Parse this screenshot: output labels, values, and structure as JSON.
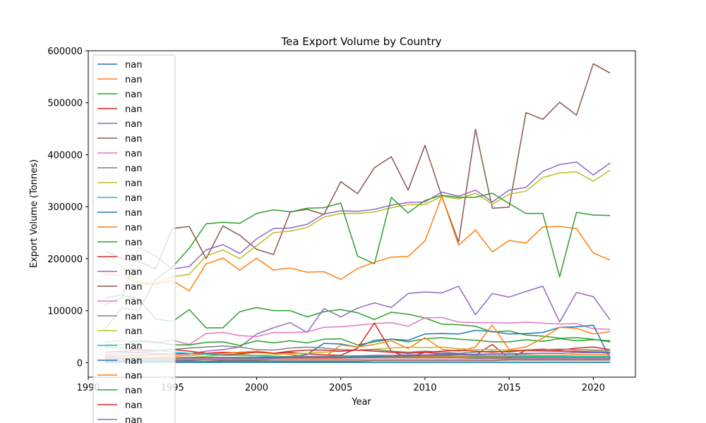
{
  "chart_data": {
    "type": "line",
    "title": "Tea Export Volume by Country",
    "xlabel": "Year",
    "ylabel": "Export Volume (Tonnes)",
    "xlim": [
      1990,
      2022.5
    ],
    "ylim": [
      -28000,
      600000
    ],
    "x_ticks": [
      "1990",
      "1995",
      "2000",
      "2005",
      "2010",
      "2015",
      "2020"
    ],
    "x_tick_values": [
      1990,
      1995,
      2000,
      2005,
      2010,
      2015,
      2020
    ],
    "y_ticks": [
      "0",
      "100000",
      "200000",
      "300000",
      "400000",
      "500000",
      "600000"
    ],
    "y_tick_values": [
      0,
      100000,
      200000,
      300000,
      400000,
      500000,
      600000
    ],
    "grid": false,
    "legend_position": "upper-left",
    "legend_entries": [
      "nan",
      "nan",
      "nan",
      "nan",
      "nan",
      "nan",
      "nan",
      "nan",
      "nan",
      "nan",
      "nan",
      "nan",
      "nan",
      "nan",
      "nan",
      "nan",
      "nan",
      "nan",
      "nan",
      "nan",
      "nan",
      "nan",
      "nan",
      "nan",
      "nan"
    ],
    "palette": [
      "#1f77b4",
      "#ff7f0e",
      "#2ca02c",
      "#d62728",
      "#9467bd",
      "#8c564b",
      "#e377c2",
      "#7f7f7f",
      "#bcbd22",
      "#17becf"
    ],
    "x": [
      1991,
      1992,
      1993,
      1994,
      1995,
      1996,
      1997,
      1998,
      1999,
      2000,
      2001,
      2002,
      2003,
      2004,
      2005,
      2006,
      2007,
      2008,
      2009,
      2010,
      2011,
      2012,
      2013,
      2014,
      2015,
      2016,
      2017,
      2018,
      2019,
      2020,
      2021
    ],
    "series": [
      {
        "color_index": 5,
        "values": [
          215000,
          200000,
          195000,
          180000,
          258000,
          262000,
          200000,
          263000,
          245000,
          218000,
          208000,
          290000,
          295000,
          285000,
          348000,
          325000,
          375000,
          396000,
          332000,
          418000,
          320000,
          232000,
          449000,
          297000,
          299000,
          481000,
          468000,
          501000,
          476000,
          575000,
          557000
        ]
      },
      {
        "color_index": 8,
        "values": [
          200000,
          185000,
          155000,
          152000,
          165000,
          170000,
          205000,
          217000,
          200000,
          225000,
          250000,
          253000,
          260000,
          280000,
          287000,
          287000,
          290000,
          298000,
          304000,
          304000,
          320000,
          315000,
          326000,
          305000,
          324000,
          330000,
          356000,
          365000,
          367000,
          349000,
          370000
        ]
      },
      {
        "color_index": 4,
        "values": [
          112000,
          125000,
          222000,
          205000,
          180000,
          185000,
          217000,
          227000,
          210000,
          238000,
          258000,
          259000,
          266000,
          286000,
          292000,
          291000,
          295000,
          303000,
          308000,
          309000,
          328000,
          320000,
          332000,
          309000,
          332000,
          337000,
          368000,
          381000,
          386000,
          361000,
          384000
        ]
      },
      {
        "color_index": 2,
        "values": [
          125000,
          130000,
          122000,
          84000,
          79000,
          102000,
          67000,
          67000,
          98000,
          106000,
          100000,
          100000,
          88000,
          98000,
          102000,
          96000,
          83000,
          97000,
          93000,
          86000,
          74000,
          73000,
          70000,
          59000,
          61000,
          53000,
          51000,
          47000,
          48000,
          45000,
          40000
        ]
      },
      {
        "color_index": 2,
        "values": [
          65000,
          105000,
          100000,
          160000,
          184000,
          220000,
          267000,
          270000,
          268000,
          287000,
          294000,
          290000,
          297000,
          298000,
          307000,
          205000,
          190000,
          318000,
          288000,
          312000,
          322000,
          318000,
          318000,
          326000,
          306000,
          287000,
          287000,
          165000,
          289000,
          284000,
          283000
        ]
      },
      {
        "color_index": 1,
        "values": [
          170000,
          168000,
          152000,
          150000,
          158000,
          138000,
          190000,
          201000,
          178000,
          201000,
          178000,
          182000,
          174000,
          175000,
          160000,
          181000,
          193000,
          203000,
          204000,
          234000,
          320000,
          226000,
          255000,
          213000,
          235000,
          230000,
          261000,
          262000,
          258000,
          211000,
          197000
        ]
      },
      {
        "color_index": 4,
        "values": [
          20000,
          21000,
          19000,
          18000,
          16000,
          17000,
          22000,
          25000,
          30000,
          55000,
          67000,
          77000,
          58000,
          104000,
          88000,
          105000,
          115000,
          106000,
          133000,
          136000,
          134000,
          147000,
          92000,
          133000,
          126000,
          137000,
          147000,
          78000,
          135000,
          127000,
          82000
        ]
      },
      {
        "color_index": 6,
        "values": [
          40000,
          42000,
          40000,
          38000,
          43000,
          35000,
          56000,
          58000,
          52000,
          50000,
          58000,
          58000,
          59000,
          68000,
          69000,
          72000,
          75000,
          77000,
          70000,
          86000,
          87000,
          78000,
          77000,
          77000,
          76000,
          78000,
          76000,
          74000,
          75000,
          65000,
          64000
        ]
      },
      {
        "color_index": 2,
        "values": [
          35000,
          34000,
          42000,
          40000,
          34000,
          34000,
          39000,
          40000,
          33000,
          42000,
          38000,
          42000,
          38000,
          45000,
          46000,
          34000,
          40000,
          45000,
          40000,
          46000,
          48000,
          45000,
          43000,
          40000,
          40000,
          44000,
          41000,
          46000,
          42000,
          44000,
          42000
        ]
      },
      {
        "color_index": 0,
        "values": [
          3000,
          3000,
          3000,
          3000,
          4000,
          4000,
          5000,
          5000,
          6000,
          8000,
          9000,
          12000,
          16000,
          37000,
          36000,
          30000,
          43000,
          45000,
          43000,
          55000,
          56000,
          55000,
          62000,
          60000,
          55000,
          56000,
          58000,
          68000,
          69000,
          72000,
          8000
        ]
      },
      {
        "color_index": 3,
        "values": [
          20000,
          22000,
          24000,
          23000,
          25000,
          22000,
          18000,
          20000,
          19000,
          22000,
          18000,
          20000,
          17000,
          15000,
          14000,
          28000,
          76000,
          22000,
          10000,
          20000,
          17000,
          18000,
          14000,
          35000,
          8000,
          24000,
          26000,
          24000,
          28000,
          30000,
          25000
        ]
      },
      {
        "color_index": 1,
        "values": [
          10000,
          9000,
          8000,
          10000,
          12000,
          14000,
          16000,
          18000,
          20000,
          22000,
          18000,
          16000,
          12000,
          10000,
          34000,
          30000,
          35000,
          42000,
          27000,
          48000,
          26000,
          22000,
          30000,
          72000,
          25000,
          30000,
          47000,
          68000,
          66000,
          55000,
          60000
        ]
      },
      {
        "color_index": 8,
        "values": [
          8000,
          9000,
          10000,
          9000,
          8000,
          10000,
          12000,
          15000,
          16000,
          14000,
          15000,
          18000,
          18000,
          20000,
          22000,
          24000,
          26000,
          28000,
          30000,
          29000,
          30000,
          27000,
          25000,
          25000,
          24000,
          23000,
          22000,
          22000,
          21000,
          22000,
          21000
        ]
      },
      {
        "color_index": 7,
        "values": [
          15000,
          18000,
          20000,
          22000,
          25000,
          28000,
          30000,
          32000,
          30000,
          25000,
          24000,
          28000,
          30000,
          28000,
          25000,
          24000,
          25000,
          22000,
          20000,
          22000,
          20000,
          18000,
          20000,
          22000,
          20000,
          24000,
          25000,
          26000,
          25000,
          24000,
          24000
        ]
      },
      {
        "color_index": 3,
        "values": [
          12000,
          13000,
          14000,
          15000,
          16000,
          18000,
          16000,
          15000,
          17000,
          20000,
          18000,
          22000,
          24000,
          24000,
          22000,
          24000,
          22000,
          20000,
          18000,
          20000,
          22000,
          24000,
          22000,
          20000,
          22000,
          24000,
          23000,
          22000,
          22000,
          20000,
          18000
        ]
      },
      {
        "color_index": 9,
        "values": [
          30000,
          28000,
          26000,
          24000,
          20000,
          18000,
          16000,
          14000,
          14000,
          13000,
          12000,
          12000,
          12000,
          12000,
          12000,
          12000,
          12000,
          12000,
          12000,
          12000,
          12000,
          12000,
          12000,
          12000,
          12000,
          12000,
          12000,
          12000,
          12000,
          12000,
          12000
        ]
      },
      {
        "color_index": 0,
        "values": [
          5000,
          5000,
          5000,
          6000,
          6000,
          7000,
          7000,
          7000,
          8000,
          8000,
          8000,
          9000,
          9000,
          10000,
          10000,
          11000,
          12000,
          12000,
          13000,
          14000,
          14000,
          15000,
          15000,
          16000,
          16000,
          17000,
          18000,
          18000,
          19000,
          20000,
          20000
        ]
      },
      {
        "color_index": 4,
        "values": [
          6000,
          6000,
          7000,
          7000,
          8000,
          8000,
          9000,
          9000,
          10000,
          10000,
          11000,
          11000,
          12000,
          12000,
          13000,
          13000,
          14000,
          14000,
          15000,
          15000,
          16000,
          16000,
          16000,
          17000,
          17000,
          18000,
          18000,
          18000,
          19000,
          19000,
          19000
        ]
      },
      {
        "color_index": 1,
        "values": [
          3000,
          3000,
          4000,
          4000,
          5000,
          5000,
          5000,
          6000,
          6000,
          7000,
          7000,
          8000,
          8000,
          9000,
          9000,
          10000,
          10000,
          11000,
          11000,
          12000,
          12000,
          12000,
          13000,
          13000,
          13000,
          14000,
          14000,
          14000,
          15000,
          15000,
          15000
        ]
      },
      {
        "color_index": 2,
        "values": [
          9000,
          9000,
          9000,
          9000,
          9000,
          10000,
          10000,
          10000,
          10000,
          10000,
          10000,
          10000,
          10000,
          10000,
          10000,
          10000,
          10000,
          10000,
          10000,
          10000,
          10000,
          10000,
          10000,
          10000,
          10000,
          10000,
          10000,
          10000,
          10000,
          10000,
          10000
        ]
      },
      {
        "color_index": 7,
        "values": [
          4000,
          4000,
          4000,
          4000,
          4000,
          5000,
          5000,
          5000,
          5000,
          5000,
          6000,
          6000,
          6000,
          6000,
          6000,
          6000,
          7000,
          7000,
          7000,
          7000,
          7000,
          7000,
          8000,
          8000,
          8000,
          8000,
          8000,
          8000,
          8000,
          8000,
          8000
        ]
      },
      {
        "color_index": 5,
        "values": [
          2000,
          2000,
          2000,
          2000,
          2000,
          2000,
          2000,
          3000,
          3000,
          3000,
          3000,
          3000,
          3000,
          3000,
          3000,
          3000,
          4000,
          4000,
          4000,
          4000,
          4000,
          4000,
          4000,
          4000,
          5000,
          5000,
          5000,
          5000,
          5000,
          5000,
          5000
        ]
      },
      {
        "color_index": 9,
        "values": [
          1000,
          1000,
          1000,
          1000,
          1000,
          1000,
          1000,
          1000,
          1000,
          1000,
          1000,
          1000,
          1000,
          1000,
          1000,
          1000,
          1000,
          1000,
          1000,
          1000,
          1000,
          1000,
          1000,
          1000,
          1000,
          1000,
          1000,
          1000,
          1000,
          1000,
          1000
        ]
      },
      {
        "color_index": 6,
        "values": [
          7000,
          7000,
          7000,
          7000,
          7000,
          7000,
          7000,
          7000,
          7000,
          7000,
          7000,
          7000,
          7000,
          7000,
          7000,
          7000,
          7000,
          7000,
          7000,
          7000,
          7000,
          7000,
          7000,
          7000,
          7000,
          7000,
          7000,
          7000,
          7000,
          7000,
          7000
        ]
      },
      {
        "color_index": 0,
        "values": [
          500,
          500,
          500,
          500,
          500,
          500,
          500,
          500,
          500,
          500,
          500,
          500,
          500,
          500,
          500,
          500,
          500,
          500,
          500,
          500,
          500,
          500,
          500,
          500,
          500,
          500,
          500,
          500,
          500,
          500,
          500
        ]
      }
    ]
  }
}
